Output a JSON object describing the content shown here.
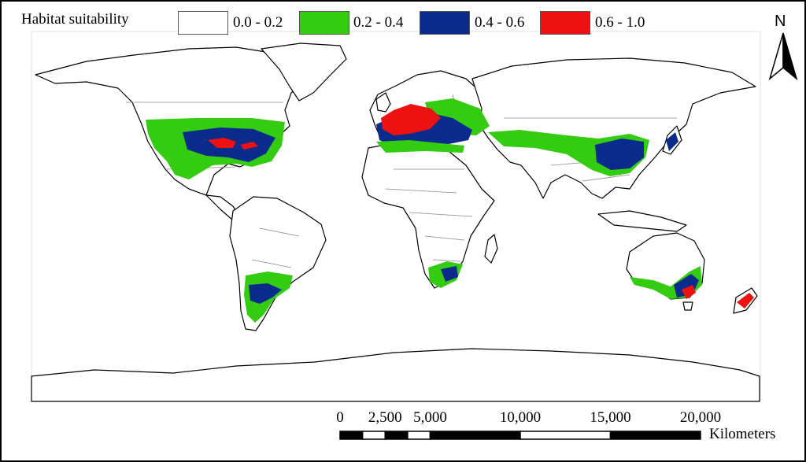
{
  "legend": {
    "title": "Habitat suitability",
    "classes": [
      {
        "label": "0.0 - 0.2",
        "color": "#ffffff"
      },
      {
        "label": "0.2 - 0.4",
        "color": "#33cc11"
      },
      {
        "label": "0.4 - 0.6",
        "color": "#0a2a8c"
      },
      {
        "label": "0.6 - 1.0",
        "color": "#ee1111"
      }
    ]
  },
  "north_arrow": {
    "letter": "N",
    "icon": "north-arrow-icon"
  },
  "scale_bar": {
    "ticks": [
      "0",
      "2,500",
      "5,000",
      "10,000",
      "15,000",
      "20,000"
    ],
    "tick_values": [
      0,
      2500,
      5000,
      10000,
      15000,
      20000
    ],
    "units": "Kilometers"
  },
  "colors": {
    "land_outline": "#000000",
    "border": "#888888",
    "frame": "#000000"
  }
}
